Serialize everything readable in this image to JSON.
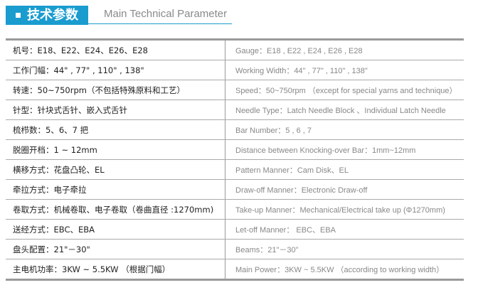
{
  "header": {
    "title": "技术参数",
    "subtitle": "Main Technical Parameter",
    "accent": "#1a9ccf"
  },
  "rows": [
    {
      "zh": "机号：E18、E22、E24、E26、E28",
      "en": "Gauge：E18 , E22 , E24 , E26 , E28"
    },
    {
      "zh": "工作门幅：44\" , 77\" , 110\" , 138\"",
      "en": "Working Width：44\" , 77\" , 110\" , 138\""
    },
    {
      "zh": "转速：50~750rpm（不包括特殊原料和工艺）",
      "en": "Speed：50~750rpm （except for special yarns and technique）"
    },
    {
      "zh": "针型：针块式舌针、嵌入式舌针",
      "en": "Needle Type：Latch Needle Block 、Individual Latch Needle"
    },
    {
      "zh": "梳栉数：5、6、7 把",
      "en": "Bar Number：5 , 6 , 7"
    },
    {
      "zh": "脱圈开档：1 ~ 12mm",
      "en": "Distance between Knocking-over Bar：1mm~12mm"
    },
    {
      "zh": "横移方式：花盘凸轮、EL",
      "en": "Pattern Manner：Cam Disk、EL"
    },
    {
      "zh": "牵拉方式：电子牵拉",
      "en": "Draw-off Manner：Electronic Draw-off"
    },
    {
      "zh": "卷取方式：机械卷取、电子卷取（卷曲直径 :1270mm)",
      "en": "Take-up Manner：Mechanical/Electrical take up (Φ1270mm)"
    },
    {
      "zh": "送经方式：EBC、EBA",
      "en": "Let-off Manner： EBC、EBA"
    },
    {
      "zh": "盘头配置：21\"－30\"",
      "en": "Beams：21\"－30\""
    },
    {
      "zh": "主电机功率：3KW ~ 5.5KW （根据门幅）",
      "en": "Main Power：3KW ~ 5.5KW （according to working width）"
    }
  ]
}
